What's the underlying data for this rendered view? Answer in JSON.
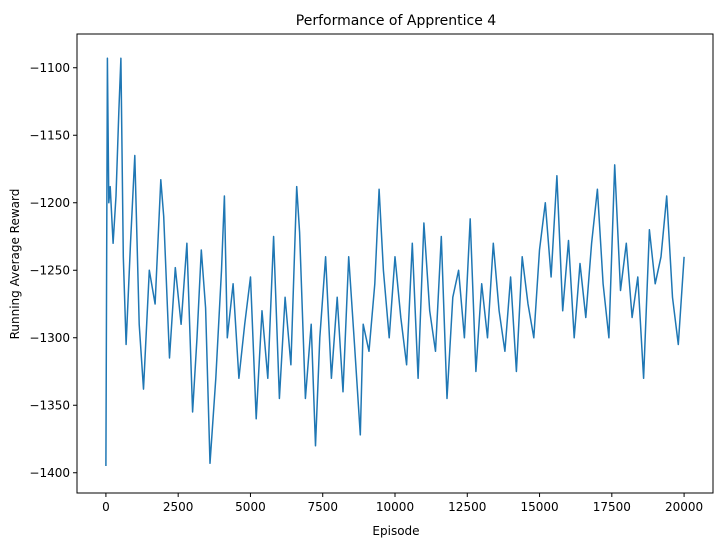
{
  "chart_data": {
    "type": "line",
    "title": "Performance of Apprentice 4",
    "xlabel": "Episode",
    "ylabel": "Running Average Reward",
    "xlim": [
      -1000,
      21000
    ],
    "ylim": [
      -1415,
      -1075
    ],
    "xticks": [
      0,
      2500,
      5000,
      7500,
      10000,
      12500,
      15000,
      17500,
      20000
    ],
    "xtick_labels": [
      "0",
      "2500",
      "5000",
      "7500",
      "10000",
      "12500",
      "15000",
      "17500",
      "20000"
    ],
    "yticks": [
      -1400,
      -1350,
      -1300,
      -1250,
      -1200,
      -1150,
      -1100
    ],
    "ytick_labels": [
      "−1400",
      "−1350",
      "−1300",
      "−1250",
      "−1200",
      "−1150",
      "−1100"
    ],
    "grid": false,
    "series": [
      {
        "color": "#1f77b4",
        "x": [
          0,
          50,
          100,
          150,
          250,
          350,
          450,
          520,
          600,
          700,
          850,
          1000,
          1150,
          1300,
          1500,
          1700,
          1900,
          2000,
          2200,
          2400,
          2600,
          2800,
          3000,
          3150,
          3300,
          3450,
          3600,
          3800,
          4000,
          4100,
          4200,
          4400,
          4600,
          4800,
          5000,
          5200,
          5400,
          5600,
          5800,
          6000,
          6200,
          6400,
          6600,
          6700,
          6900,
          7100,
          7250,
          7400,
          7600,
          7800,
          8000,
          8200,
          8400,
          8600,
          8800,
          8900,
          9100,
          9300,
          9450,
          9600,
          9800,
          10000,
          10200,
          10400,
          10600,
          10800,
          11000,
          11200,
          11400,
          11600,
          11800,
          12000,
          12200,
          12400,
          12600,
          12800,
          13000,
          13200,
          13400,
          13600,
          13800,
          14000,
          14200,
          14400,
          14600,
          14800,
          15000,
          15200,
          15400,
          15600,
          15800,
          16000,
          16200,
          16400,
          16600,
          16800,
          17000,
          17200,
          17400,
          17600,
          17800,
          18000,
          18200,
          18400,
          18600,
          18800,
          19000,
          19200,
          19400,
          19600,
          19800,
          20000
        ],
        "y": [
          -1395,
          -1093,
          -1200,
          -1188,
          -1230,
          -1195,
          -1131,
          -1093,
          -1240,
          -1305,
          -1230,
          -1165,
          -1290,
          -1338,
          -1250,
          -1275,
          -1183,
          -1210,
          -1315,
          -1248,
          -1290,
          -1230,
          -1355,
          -1300,
          -1235,
          -1278,
          -1393,
          -1330,
          -1250,
          -1195,
          -1300,
          -1260,
          -1330,
          -1290,
          -1255,
          -1360,
          -1280,
          -1330,
          -1225,
          -1345,
          -1270,
          -1320,
          -1188,
          -1222,
          -1345,
          -1290,
          -1380,
          -1300,
          -1240,
          -1330,
          -1270,
          -1340,
          -1240,
          -1305,
          -1372,
          -1290,
          -1310,
          -1260,
          -1190,
          -1250,
          -1300,
          -1240,
          -1285,
          -1320,
          -1230,
          -1330,
          -1215,
          -1280,
          -1310,
          -1225,
          -1345,
          -1270,
          -1250,
          -1300,
          -1212,
          -1325,
          -1260,
          -1300,
          -1230,
          -1280,
          -1310,
          -1255,
          -1325,
          -1240,
          -1275,
          -1300,
          -1235,
          -1200,
          -1255,
          -1180,
          -1280,
          -1228,
          -1300,
          -1245,
          -1285,
          -1230,
          -1190,
          -1260,
          -1300,
          -1172,
          -1265,
          -1230,
          -1285,
          -1255,
          -1330,
          -1220,
          -1260,
          -1240,
          -1195,
          -1270,
          -1305,
          -1240
        ]
      }
    ]
  }
}
